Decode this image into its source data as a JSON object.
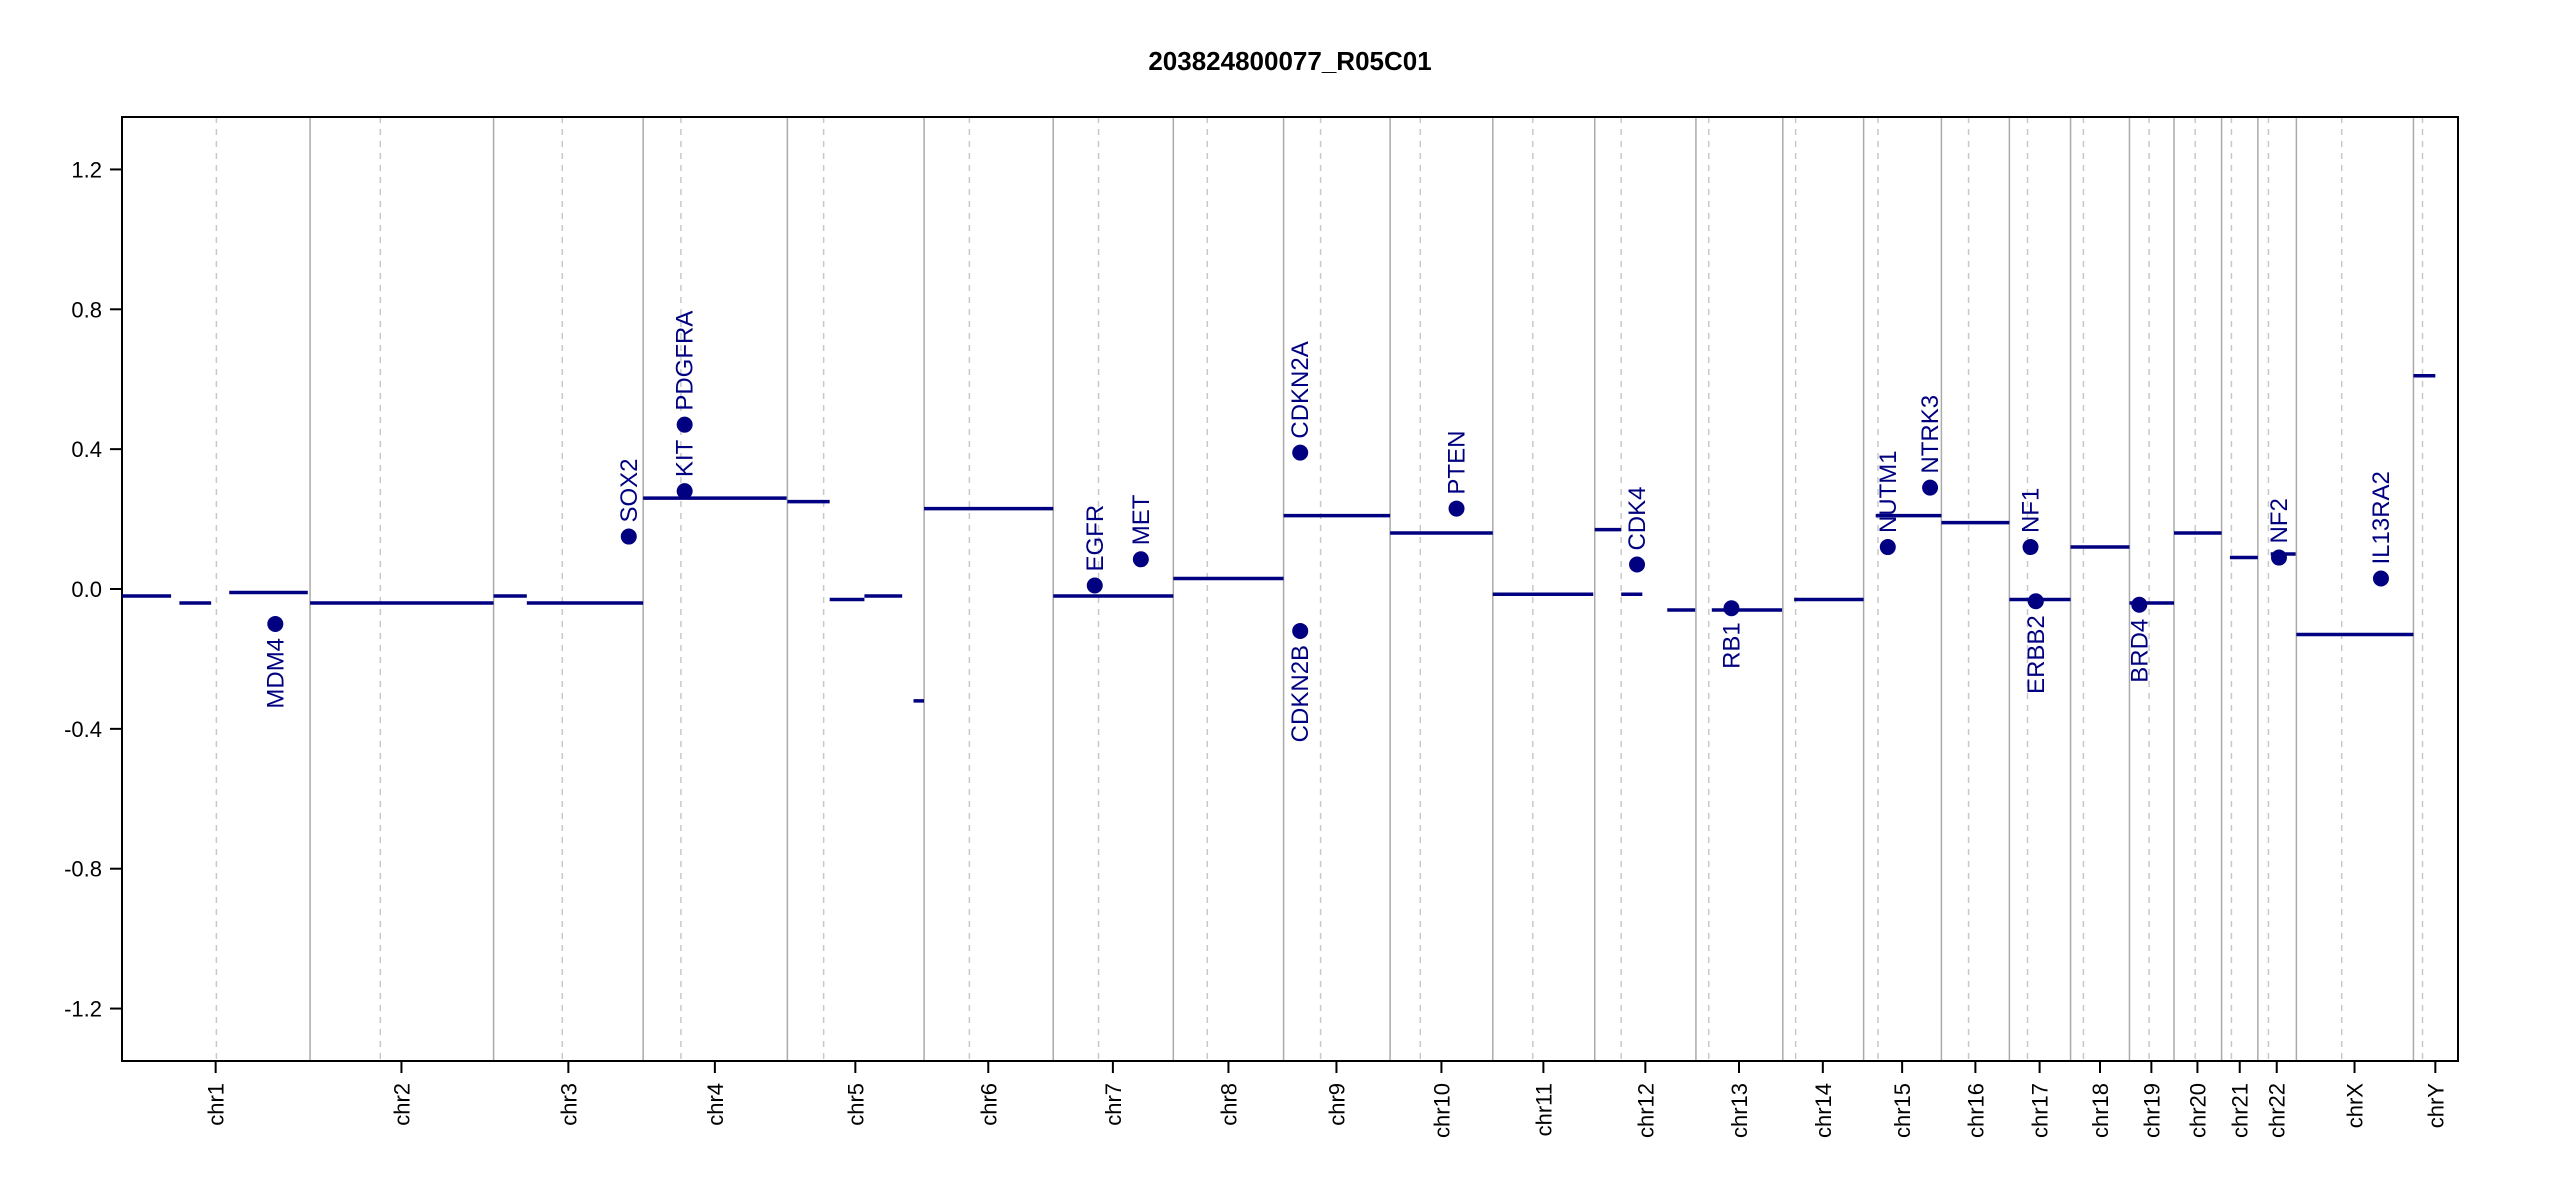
{
  "chart_data": {
    "type": "segment",
    "title": "203824800077_R05C01",
    "xlim": [
      0,
      3093
    ],
    "ylim": [
      -1.35,
      1.35
    ],
    "yticks": [
      -1.2,
      -0.8,
      -0.4,
      {
        "value": 0,
        "label": "0.0"
      },
      0.4,
      0.8,
      1.2
    ],
    "xticks": [
      {
        "value": 124,
        "label": "chr1"
      },
      {
        "value": 370,
        "label": "chr2"
      },
      {
        "value": 591,
        "label": "chr3"
      },
      {
        "value": 785,
        "label": "chr4"
      },
      {
        "value": 971,
        "label": "chr5"
      },
      {
        "value": 1147,
        "label": "chr6"
      },
      {
        "value": 1312,
        "label": "chr7"
      },
      {
        "value": 1465,
        "label": "chr8"
      },
      {
        "value": 1608,
        "label": "chr9"
      },
      {
        "value": 1747,
        "label": "chr10"
      },
      {
        "value": 1882,
        "label": "chr11"
      },
      {
        "value": 2017,
        "label": "chr12"
      },
      {
        "value": 2141,
        "label": "chr13"
      },
      {
        "value": 2252,
        "label": "chr14"
      },
      {
        "value": 2357,
        "label": "chr15"
      },
      {
        "value": 2454,
        "label": "chr16"
      },
      {
        "value": 2539,
        "label": "chr17"
      },
      {
        "value": 2619,
        "label": "chr18"
      },
      {
        "value": 2687,
        "label": "chr19"
      },
      {
        "value": 2748,
        "label": "chr20"
      },
      {
        "value": 2804,
        "label": "chr21"
      },
      {
        "value": 2853,
        "label": "chr22"
      },
      {
        "value": 2956,
        "label": "chrX"
      },
      {
        "value": 3063,
        "label": "chrY"
      }
    ],
    "chromosome_boundaries": [
      249,
      492,
      690,
      881,
      1062,
      1233,
      1392,
      1538,
      1679,
      1815,
      1950,
      2084,
      2199,
      2306,
      2409,
      2499,
      2580,
      2658,
      2717,
      2780,
      2828,
      2879,
      3034
    ],
    "centromeres": [
      125,
      342,
      583,
      740,
      929,
      1122,
      1293,
      1437,
      1587,
      1719,
      1868,
      1985,
      2101,
      2216,
      2325,
      2445,
      2523,
      2597,
      2684,
      2745,
      2793,
      2842,
      2939,
      3046
    ],
    "segment_color": "#000080",
    "boundary_color": "#aaaaaa",
    "segments": [
      {
        "x": [
          0,
          65
        ],
        "value": -0.02
      },
      {
        "x": [
          76,
          118
        ],
        "value": -0.04
      },
      {
        "x": [
          142,
          246
        ],
        "value": -0.01
      },
      {
        "x": [
          249,
          492
        ],
        "value": -0.04
      },
      {
        "x": [
          492,
          536
        ],
        "value": -0.02
      },
      {
        "x": [
          536,
          690
        ],
        "value": -0.04
      },
      {
        "x": [
          690,
          880
        ],
        "value": 0.26
      },
      {
        "x": [
          881,
          937
        ],
        "value": 0.25
      },
      {
        "x": [
          937,
          983
        ],
        "value": -0.03
      },
      {
        "x": [
          983,
          1033
        ],
        "value": -0.02
      },
      {
        "x": [
          1048,
          1062
        ],
        "value": -0.32
      },
      {
        "x": [
          1062,
          1233
        ],
        "value": 0.23
      },
      {
        "x": [
          1233,
          1392
        ],
        "value": -0.02
      },
      {
        "x": [
          1392,
          1538
        ],
        "value": 0.03
      },
      {
        "x": [
          1538,
          1679
        ],
        "value": 0.21
      },
      {
        "x": [
          1679,
          1815
        ],
        "value": 0.16
      },
      {
        "x": [
          1815,
          1948
        ],
        "value": -0.015
      },
      {
        "x": [
          1950,
          1985
        ],
        "value": 0.17
      },
      {
        "x": [
          1985,
          2013
        ],
        "value": -0.015
      },
      {
        "x": [
          2046,
          2083
        ],
        "value": -0.06
      },
      {
        "x": [
          2105,
          2198
        ],
        "value": -0.06
      },
      {
        "x": [
          2214,
          2306
        ],
        "value": -0.03
      },
      {
        "x": [
          2322,
          2409
        ],
        "value": 0.21
      },
      {
        "x": [
          2409,
          2499
        ],
        "value": 0.19
      },
      {
        "x": [
          2499,
          2580
        ],
        "value": -0.03
      },
      {
        "x": [
          2580,
          2658
        ],
        "value": 0.12
      },
      {
        "x": [
          2658,
          2717
        ],
        "value": -0.04
      },
      {
        "x": [
          2717,
          2780
        ],
        "value": 0.16
      },
      {
        "x": [
          2791,
          2828
        ],
        "value": 0.09
      },
      {
        "x": [
          2845,
          2878
        ],
        "value": 0.1
      },
      {
        "x": [
          2879,
          3034
        ],
        "value": -0.13
      },
      {
        "x": [
          3034,
          3063
        ],
        "value": 0.61
      }
    ],
    "genes": [
      {
        "name": "MDM4",
        "x": 203,
        "value": -0.1,
        "side": "below"
      },
      {
        "name": "SOX2",
        "x": 671,
        "value": 0.15,
        "side": "above"
      },
      {
        "name": "KIT",
        "x": 745,
        "value": 0.28,
        "side": "above"
      },
      {
        "name": "PDGFRA",
        "x": 745,
        "value": 0.47,
        "side": "above"
      },
      {
        "name": "EGFR",
        "x": 1288,
        "value": 0.01,
        "side": "above"
      },
      {
        "name": "MET",
        "x": 1349,
        "value": 0.085,
        "side": "above"
      },
      {
        "name": "CDKN2A",
        "x": 1560,
        "value": 0.39,
        "side": "above"
      },
      {
        "name": "CDKN2B",
        "x": 1560,
        "value": -0.12,
        "side": "below"
      },
      {
        "name": "PTEN",
        "x": 1767,
        "value": 0.23,
        "side": "above"
      },
      {
        "name": "CDK4",
        "x": 2006,
        "value": 0.07,
        "side": "above"
      },
      {
        "name": "RB1",
        "x": 2131,
        "value": -0.055,
        "side": "below"
      },
      {
        "name": "NUTM1",
        "x": 2338,
        "value": 0.12,
        "side": "above"
      },
      {
        "name": "NTRK3",
        "x": 2394,
        "value": 0.29,
        "side": "above"
      },
      {
        "name": "NF1",
        "x": 2527,
        "value": 0.12,
        "side": "above"
      },
      {
        "name": "ERBB2",
        "x": 2534,
        "value": -0.035,
        "side": "below"
      },
      {
        "name": "BRD4",
        "x": 2671,
        "value": -0.045,
        "side": "below"
      },
      {
        "name": "NF2",
        "x": 2856,
        "value": 0.09,
        "side": "above"
      },
      {
        "name": "IL13RA2",
        "x": 2991,
        "value": 0.03,
        "side": "above"
      }
    ]
  }
}
